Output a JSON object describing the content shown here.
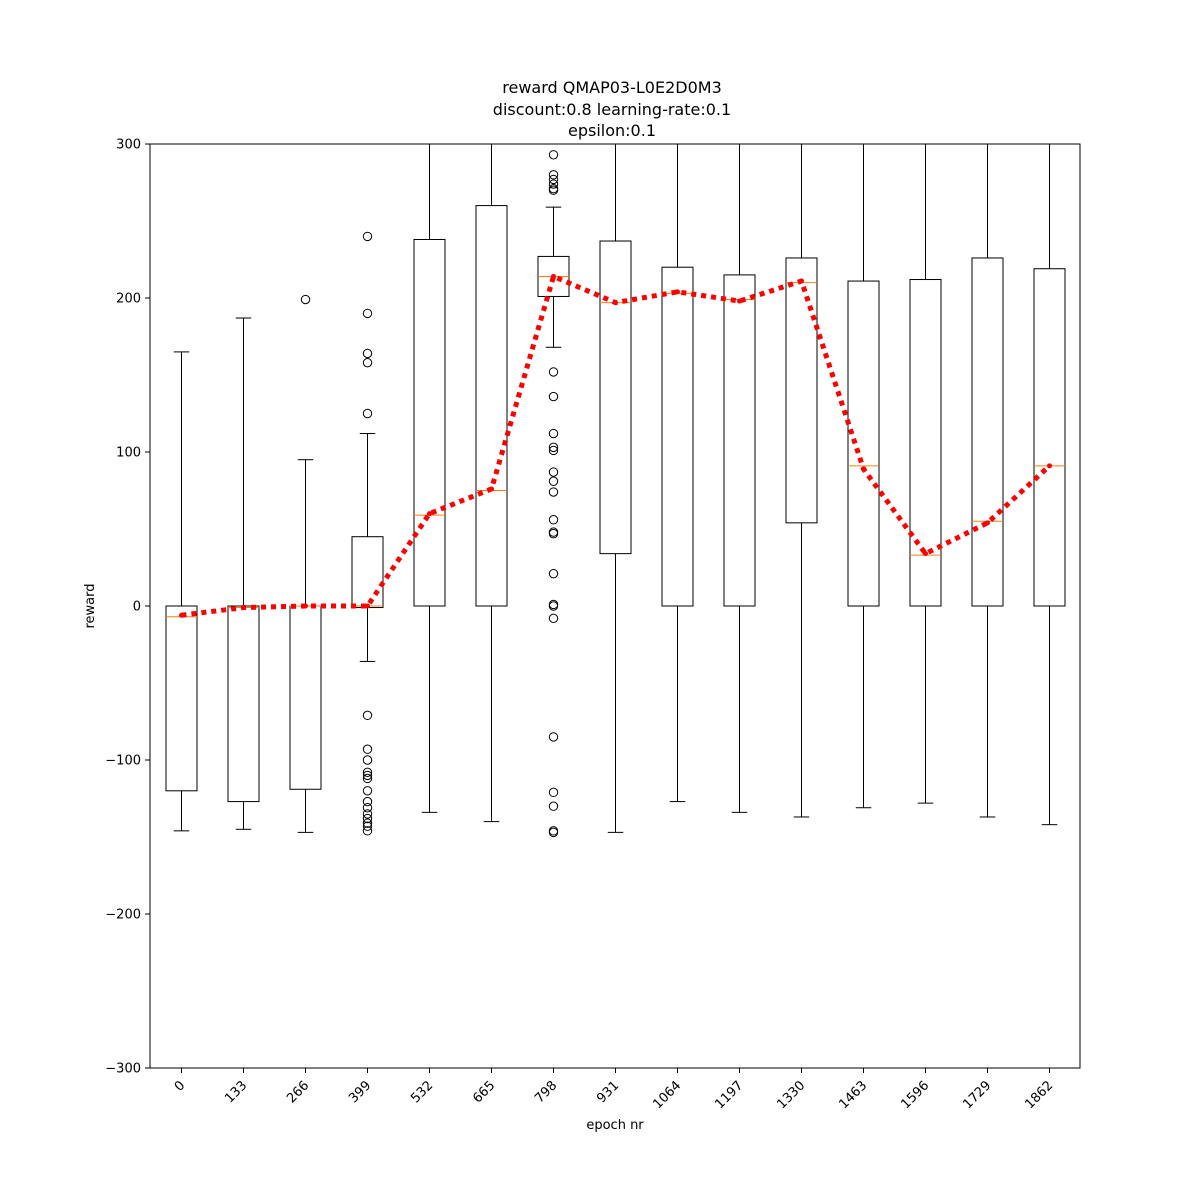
{
  "chart_data": {
    "type": "boxplot",
    "title_lines": [
      "reward QMAP03-L0E2D0M3",
      "discount:0.8 learning-rate:0.1",
      "epsilon:0.1"
    ],
    "xlabel": "epoch nr",
    "ylabel": "reward",
    "ylim": [
      -300,
      300
    ],
    "yticks": [
      -300,
      -200,
      -100,
      0,
      100,
      200,
      300
    ],
    "categories": [
      "0",
      "133",
      "266",
      "399",
      "532",
      "665",
      "798",
      "931",
      "1064",
      "1197",
      "1330",
      "1463",
      "1596",
      "1729",
      "1862"
    ],
    "grid": false,
    "box_color": "#000000",
    "median_color": "#ff7f0e",
    "trend_color": "#ff0000",
    "boxes": [
      {
        "whislo": -146,
        "q1": -120,
        "med": -7,
        "q3": 0,
        "whishi": 165,
        "fliers": []
      },
      {
        "whislo": -145,
        "q1": -127,
        "med": -1,
        "q3": 0,
        "whishi": 187,
        "fliers": []
      },
      {
        "whislo": -147,
        "q1": -119,
        "med": 0,
        "q3": 0,
        "whishi": 95,
        "fliers": [
          199
        ]
      },
      {
        "whislo": -36,
        "q1": -1,
        "med": 0,
        "q3": 45,
        "whishi": 112,
        "fliers": [
          240,
          190,
          164,
          158,
          125,
          -71,
          -93,
          -100,
          -108,
          -110,
          -112,
          -120,
          -127,
          -131,
          -135,
          -138,
          -141,
          -143,
          -146
        ]
      },
      {
        "whislo": -134,
        "q1": 0,
        "med": 59,
        "q3": 238,
        "whishi": 300,
        "fliers": []
      },
      {
        "whislo": -140,
        "q1": 0,
        "med": 75,
        "q3": 260,
        "whishi": 300,
        "fliers": []
      },
      {
        "whislo": 168,
        "q1": 201,
        "med": 214,
        "q3": 227,
        "whishi": 259,
        "fliers": [
          293,
          280,
          277,
          274,
          271,
          270,
          152,
          136,
          112,
          103,
          101,
          87,
          81,
          74,
          56,
          48,
          47,
          21,
          1,
          0,
          -8,
          -85,
          -121,
          -130,
          -146,
          -147
        ]
      },
      {
        "whislo": -147,
        "q1": 34,
        "med": 197,
        "q3": 237,
        "whishi": 300,
        "fliers": []
      },
      {
        "whislo": -127,
        "q1": 0,
        "med": 203,
        "q3": 220,
        "whishi": 300,
        "fliers": []
      },
      {
        "whislo": -134,
        "q1": 0,
        "med": 199,
        "q3": 215,
        "whishi": 300,
        "fliers": []
      },
      {
        "whislo": -137,
        "q1": 54,
        "med": 210,
        "q3": 226,
        "whishi": 300,
        "fliers": []
      },
      {
        "whislo": -131,
        "q1": 0,
        "med": 91,
        "q3": 211,
        "whishi": 300,
        "fliers": []
      },
      {
        "whislo": -128,
        "q1": 0,
        "med": 33,
        "q3": 212,
        "whishi": 300,
        "fliers": []
      },
      {
        "whislo": -137,
        "q1": 0,
        "med": 55,
        "q3": 226,
        "whishi": 300,
        "fliers": []
      },
      {
        "whislo": -142,
        "q1": 0,
        "med": 91,
        "q3": 219,
        "whishi": 300,
        "fliers": []
      }
    ],
    "trend_values": [
      -6,
      -1,
      0,
      0,
      60,
      76,
      214,
      197,
      204,
      198,
      211,
      89,
      34,
      54,
      91
    ]
  }
}
